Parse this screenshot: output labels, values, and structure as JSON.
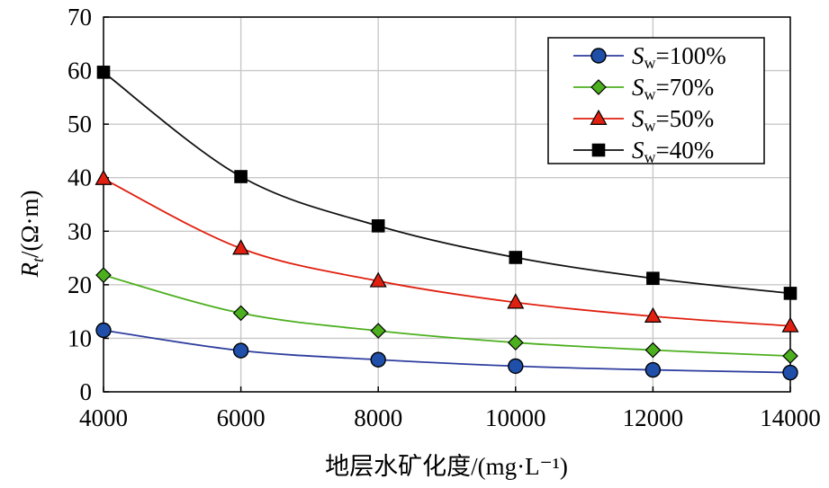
{
  "chart_data": {
    "type": "line",
    "title": "",
    "xlabel": "地层水矿化度/(mg·L⁻¹)",
    "ylabel": {
      "symbol": "R",
      "subscript": "t",
      "unit": "/(Ω·m)"
    },
    "xlim": [
      4000,
      14000
    ],
    "ylim": [
      0,
      70
    ],
    "xticks": [
      4000,
      6000,
      8000,
      10000,
      12000,
      14000
    ],
    "yticks": [
      0,
      10,
      20,
      30,
      40,
      50,
      60,
      70
    ],
    "grid": true,
    "legend_position": "top-right",
    "x": [
      4000,
      6000,
      8000,
      10000,
      12000,
      14000
    ],
    "series": [
      {
        "name": "Sw=100%",
        "symbol": "S",
        "subscript": "w",
        "value_label": "=100%",
        "color": "#2e3d9e",
        "fill": "#1f4fa8",
        "marker": "circle",
        "values": [
          11.5,
          7.7,
          6.0,
          4.8,
          4.1,
          3.6
        ]
      },
      {
        "name": "Sw=70%",
        "symbol": "S",
        "subscript": "w",
        "value_label": "=70%",
        "color": "#4caf1e",
        "fill": "#4caf1e",
        "marker": "diamond",
        "values": [
          21.8,
          14.7,
          11.4,
          9.2,
          7.8,
          6.7
        ]
      },
      {
        "name": "Sw=50%",
        "symbol": "S",
        "subscript": "w",
        "value_label": "=50%",
        "color": "#e02010",
        "fill": "#e02010",
        "marker": "triangle",
        "values": [
          39.8,
          26.8,
          20.7,
          16.7,
          14.1,
          12.3
        ]
      },
      {
        "name": "Sw=40%",
        "symbol": "S",
        "subscript": "w",
        "value_label": "=40%",
        "color": "#111111",
        "fill": "#000000",
        "marker": "square",
        "values": [
          59.7,
          40.2,
          31.0,
          25.1,
          21.2,
          18.4
        ]
      }
    ]
  }
}
